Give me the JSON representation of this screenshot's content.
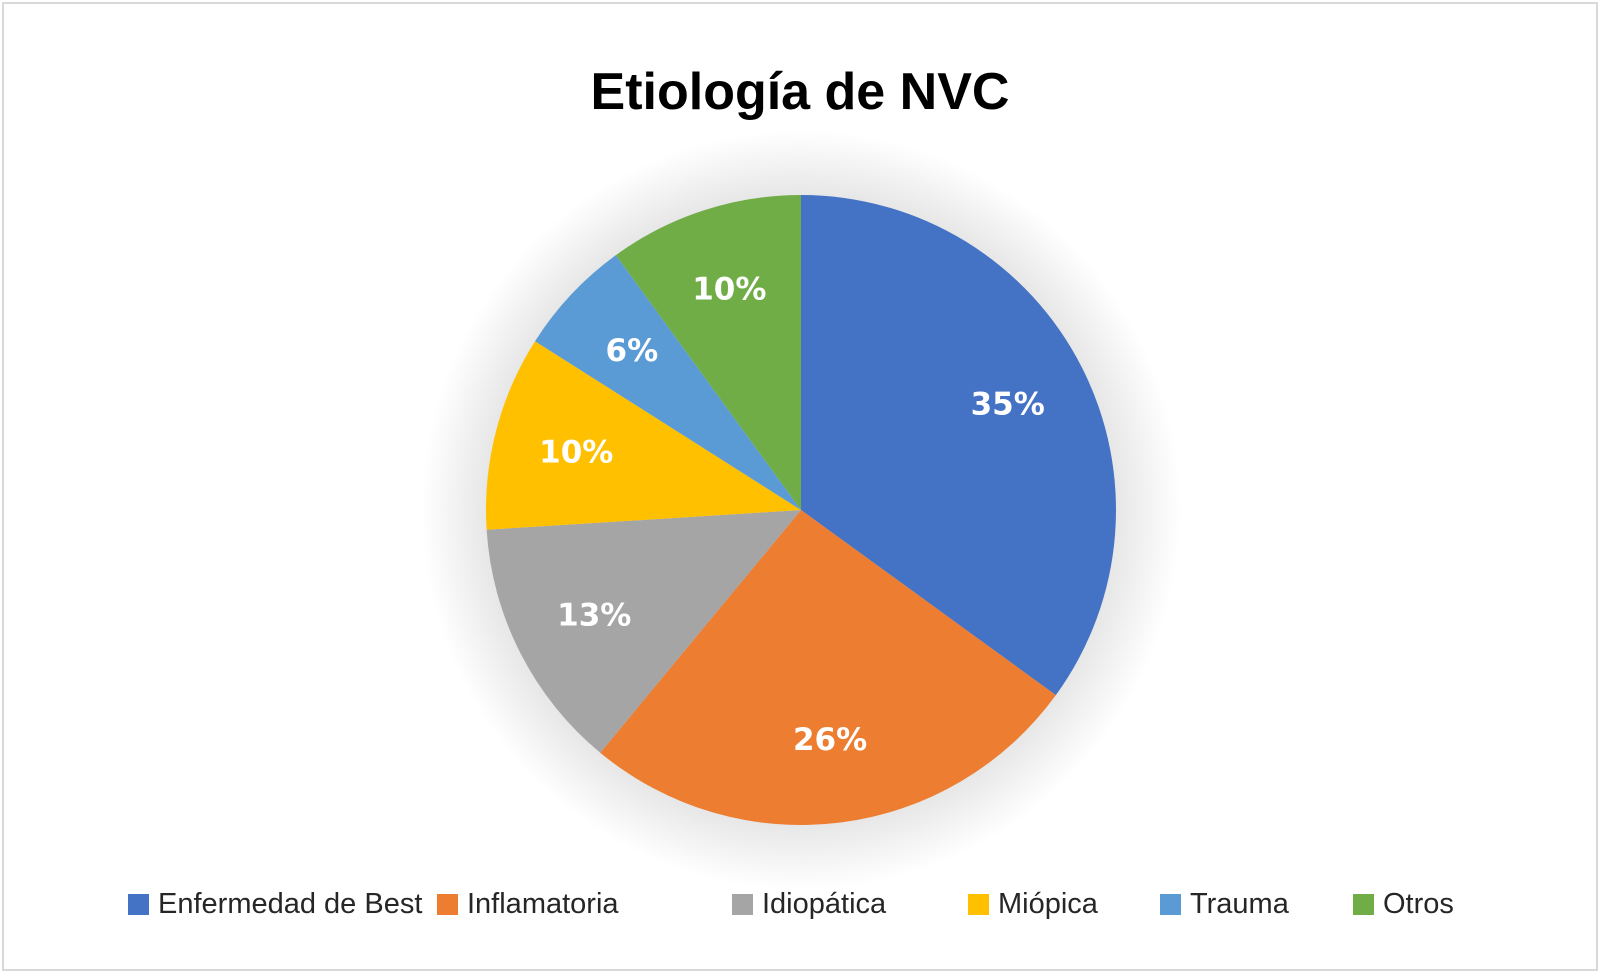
{
  "chart_data": {
    "type": "pie",
    "title": "Etiología de NVC",
    "categories": [
      "Enfermedad de Best",
      "Inflamatoria",
      "Idiopática",
      "Miópica",
      "Trauma",
      "Otros"
    ],
    "values": [
      35,
      26,
      13,
      10,
      6,
      10
    ],
    "data_labels": [
      "35%",
      "26%",
      "13%",
      "10%",
      "6%",
      "10%"
    ],
    "colors": [
      "#4472c4",
      "#ed7d31",
      "#a5a5a5",
      "#ffc000",
      "#5b9bd5",
      "#70ad47"
    ],
    "legend_position": "bottom"
  }
}
